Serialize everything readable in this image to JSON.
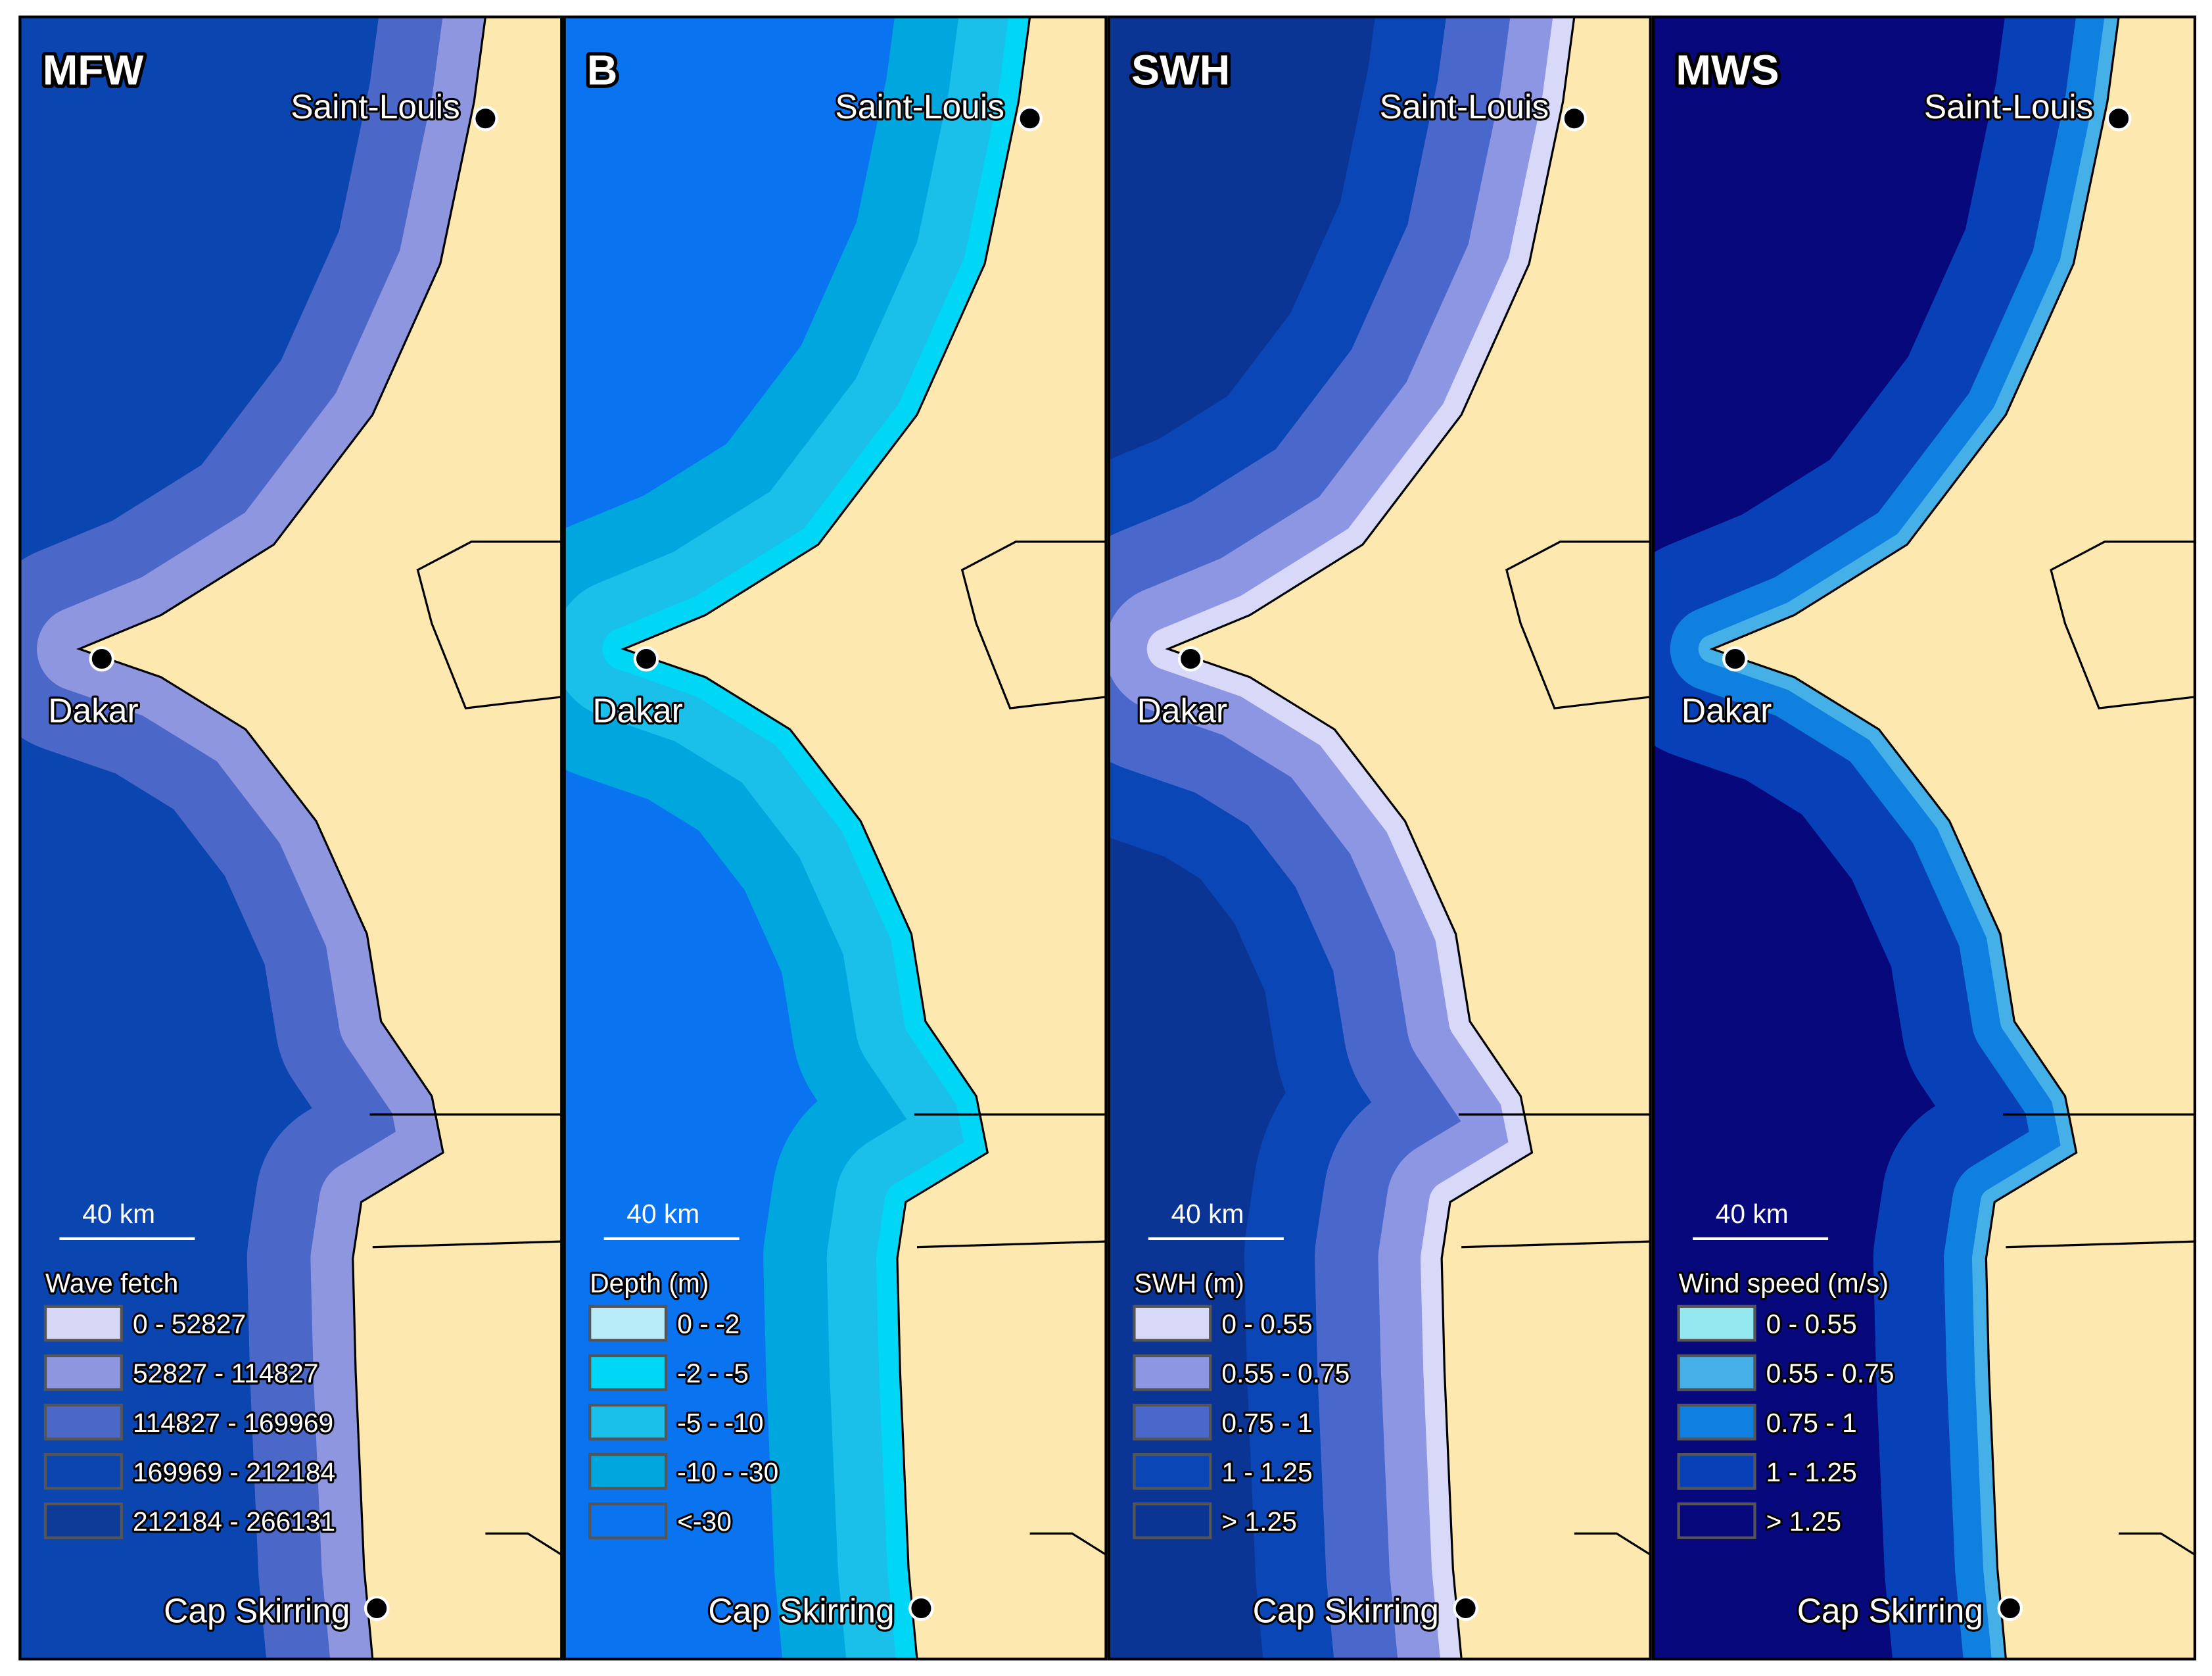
{
  "panels": [
    {
      "title": "MFW",
      "cities": [
        "Saint-Louis",
        "Dakar",
        "Cap Skirring"
      ],
      "scale_label": "40 km",
      "legend": {
        "title": "Wave fetch",
        "items": [
          {
            "label": "0 - 52827",
            "color": "#d8d8f6"
          },
          {
            "label": "52827 - 114827",
            "color": "#8f96e0"
          },
          {
            "label": "114827 - 169969",
            "color": "#4b68c8"
          },
          {
            "label": "169969 - 212184",
            "color": "#0b45b0"
          },
          {
            "label": "212184 - 266131",
            "color": "#0c3a96"
          }
        ]
      }
    },
    {
      "title": "B",
      "cities": [
        "Saint-Louis",
        "Dakar",
        "Cap Skirring"
      ],
      "scale_label": "40 km",
      "legend": {
        "title": "Depth (m)",
        "items": [
          {
            "label": "0 - -2",
            "color": "#b8ecf8"
          },
          {
            "label": "-2 - -5",
            "color": "#00d6f6"
          },
          {
            "label": "-5 - -10",
            "color": "#1abfea"
          },
          {
            "label": "-10 - -30",
            "color": "#00a7de"
          },
          {
            "label": "<-30",
            "color": "#0a74f0"
          }
        ]
      }
    },
    {
      "title": "SWH",
      "cities": [
        "Saint-Louis",
        "Dakar",
        "Cap Skirring"
      ],
      "scale_label": "40 km",
      "legend": {
        "title": "SWH (m)",
        "items": [
          {
            "label": "0 - 0.55",
            "color": "#d8d8f8"
          },
          {
            "label": "0.55 - 0.75",
            "color": "#8c96e2"
          },
          {
            "label": "0.75 - 1",
            "color": "#4a68cc"
          },
          {
            "label": "1 - 1.25",
            "color": "#0a46b5"
          },
          {
            "label": "> 1.25",
            "color": "#0a3595"
          }
        ]
      }
    },
    {
      "title": "MWS",
      "cities": [
        "Saint-Louis",
        "Dakar",
        "Cap Skirring"
      ],
      "scale_label": "40 km",
      "legend": {
        "title": "Wind speed (m/s)",
        "items": [
          {
            "label": "0 - 0.55",
            "color": "#96e8f0"
          },
          {
            "label": "0.55 - 0.75",
            "color": "#45b0e8"
          },
          {
            "label": "0.75 - 1",
            "color": "#1080e0"
          },
          {
            "label": "1 - 1.25",
            "color": "#0840b8"
          },
          {
            "label": "> 1.25",
            "color": "#06087c"
          }
        ]
      }
    }
  ]
}
